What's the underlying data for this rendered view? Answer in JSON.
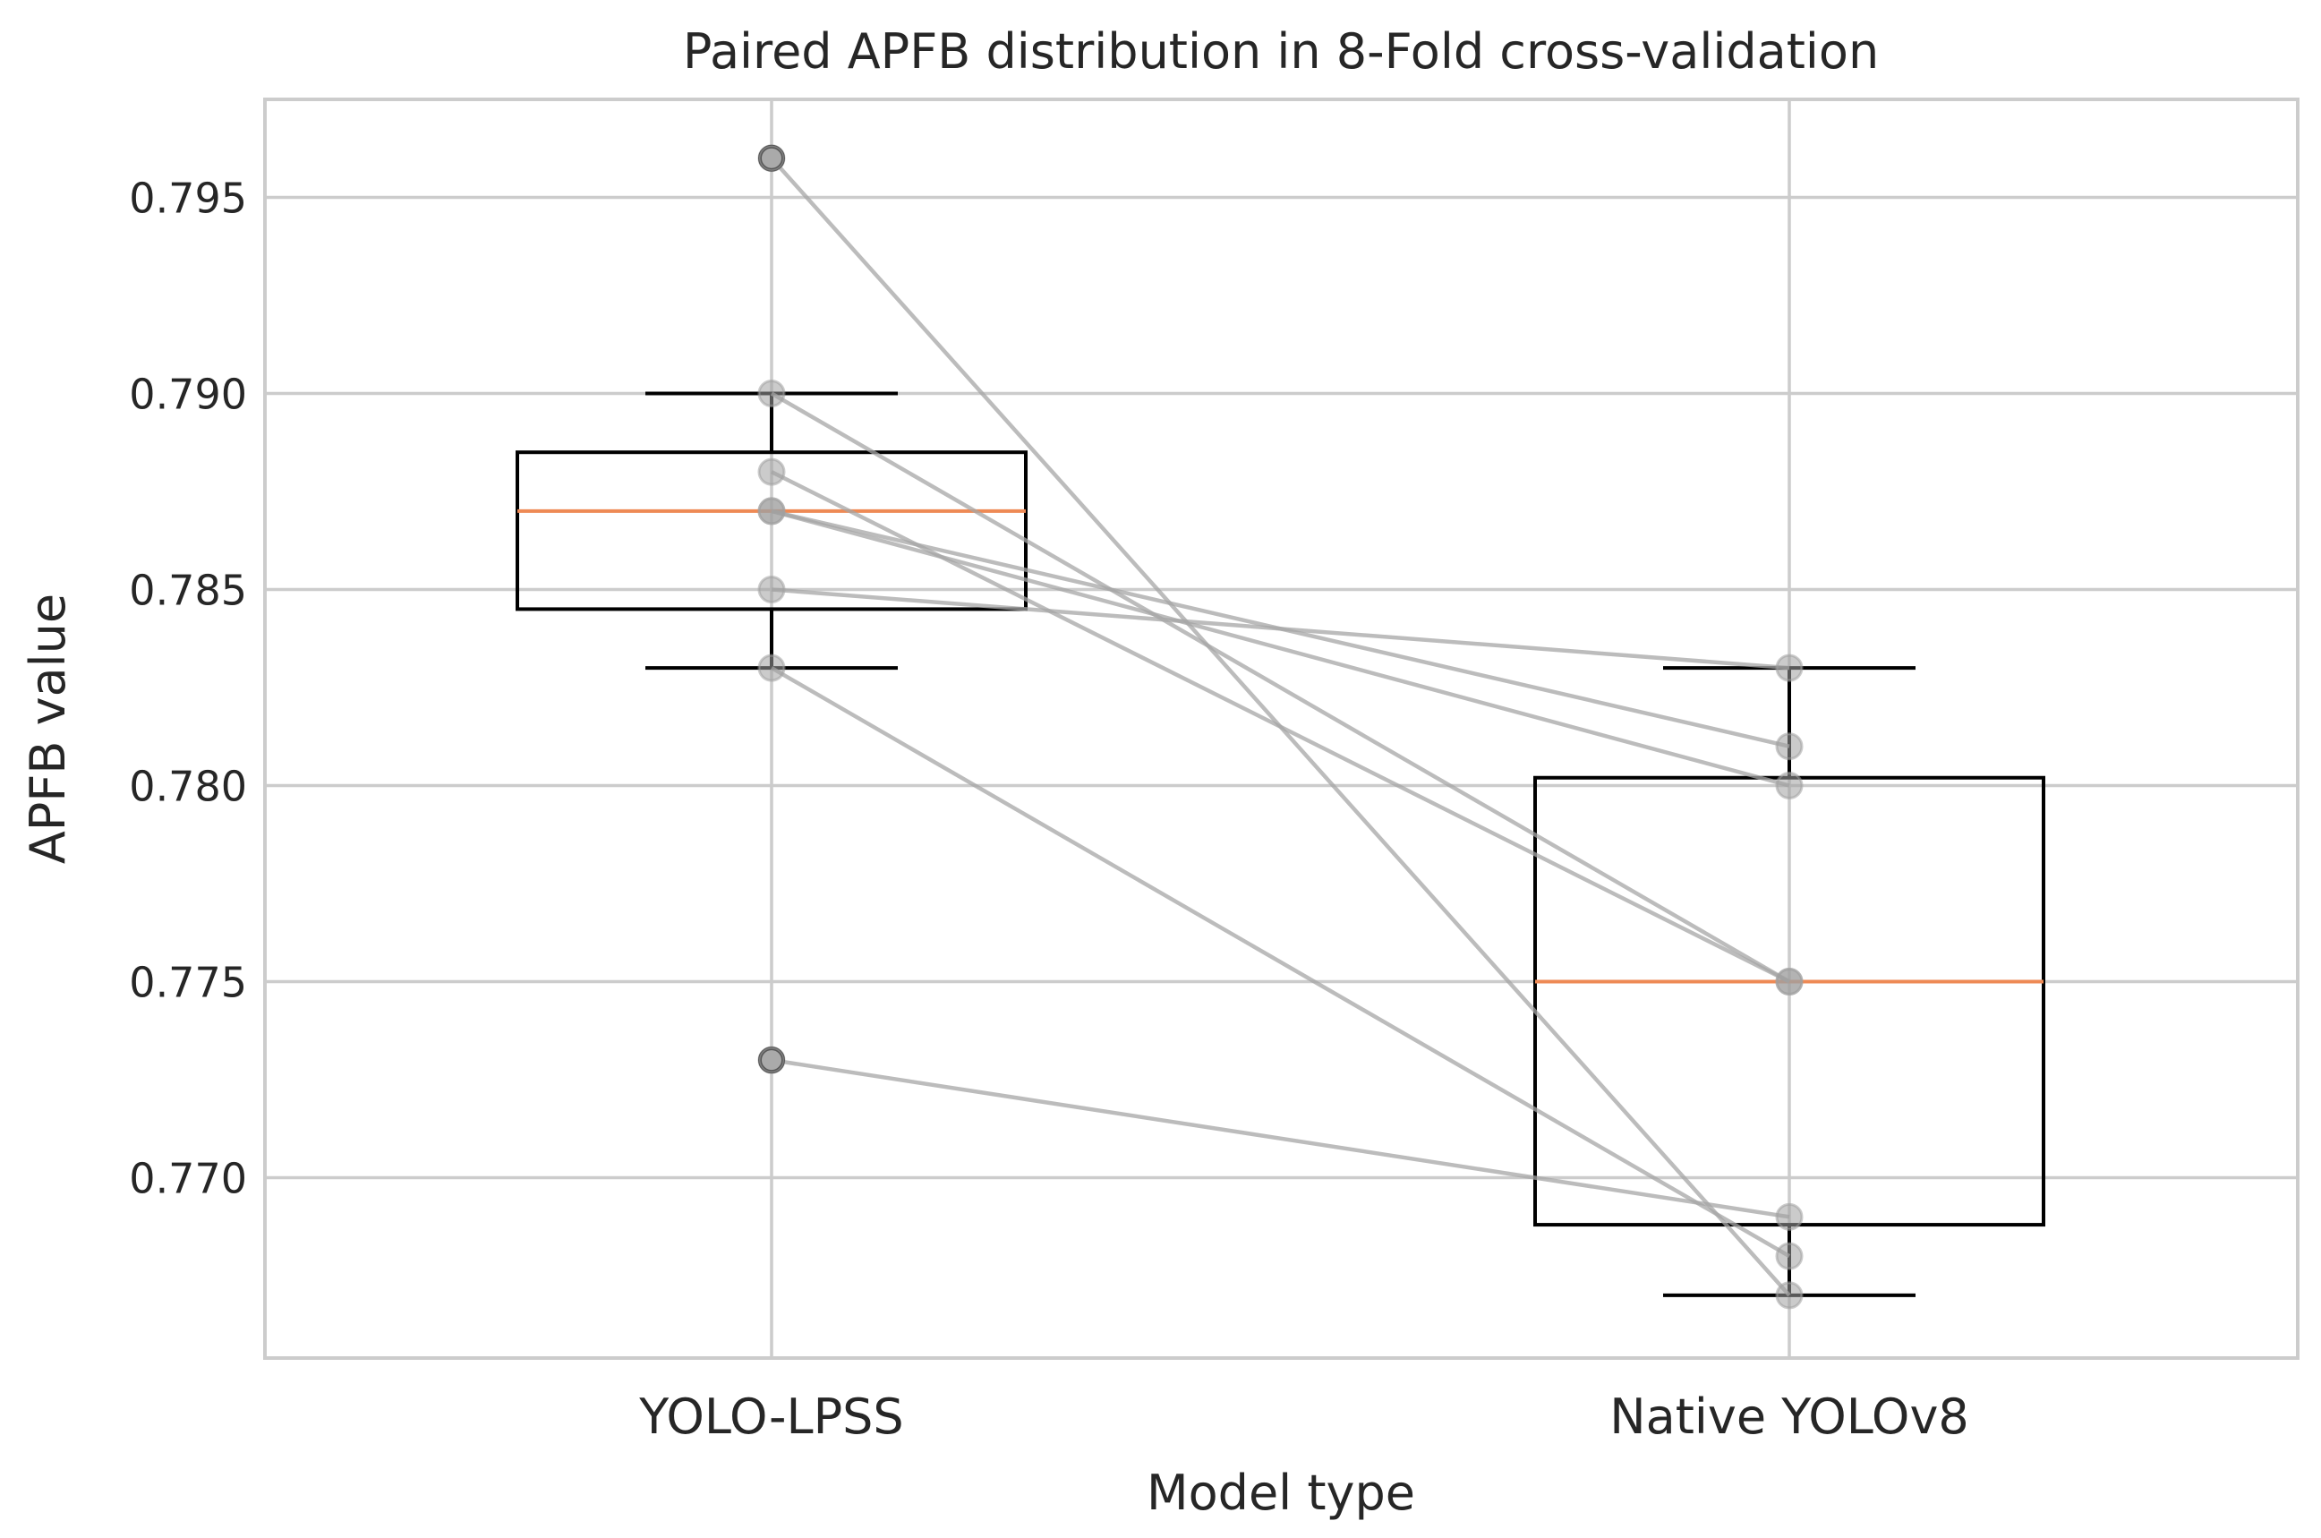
{
  "chart_data": {
    "type": "box",
    "title": "Paired APFB distribution in 8-Fold cross-validation",
    "xlabel": "Model type",
    "ylabel": "APFB value",
    "categories": [
      "YOLO-LPSS",
      "Native YOLOv8"
    ],
    "ylim": [
      0.7654,
      0.7975
    ],
    "yticks": [
      0.77,
      0.775,
      0.78,
      0.785,
      0.79,
      0.795
    ],
    "ytick_labels": [
      "0.770",
      "0.775",
      "0.780",
      "0.785",
      "0.790",
      "0.795"
    ],
    "grid": true,
    "boxes": [
      {
        "name": "YOLO-LPSS",
        "whisker_low": 0.783,
        "q1": 0.7845,
        "median": 0.787,
        "q3": 0.7885,
        "whisker_high": 0.79,
        "outliers": [
          0.796,
          0.773
        ]
      },
      {
        "name": "Native YOLOv8",
        "whisker_low": 0.767,
        "q1": 0.7688,
        "median": 0.775,
        "q3": 0.7802,
        "whisker_high": 0.783,
        "outliers": []
      }
    ],
    "pairs": [
      [
        0.796,
        0.767
      ],
      [
        0.79,
        0.775
      ],
      [
        0.788,
        0.775
      ],
      [
        0.787,
        0.781
      ],
      [
        0.787,
        0.78
      ],
      [
        0.785,
        0.783
      ],
      [
        0.783,
        0.768
      ],
      [
        0.773,
        0.769
      ]
    ],
    "colors": {
      "median": "#ee8a55",
      "box": "#000000",
      "pair_line": "#a6a6a6",
      "grid": "#cccccc",
      "frame": "#cccccc",
      "point": "#a0a0a0"
    }
  }
}
